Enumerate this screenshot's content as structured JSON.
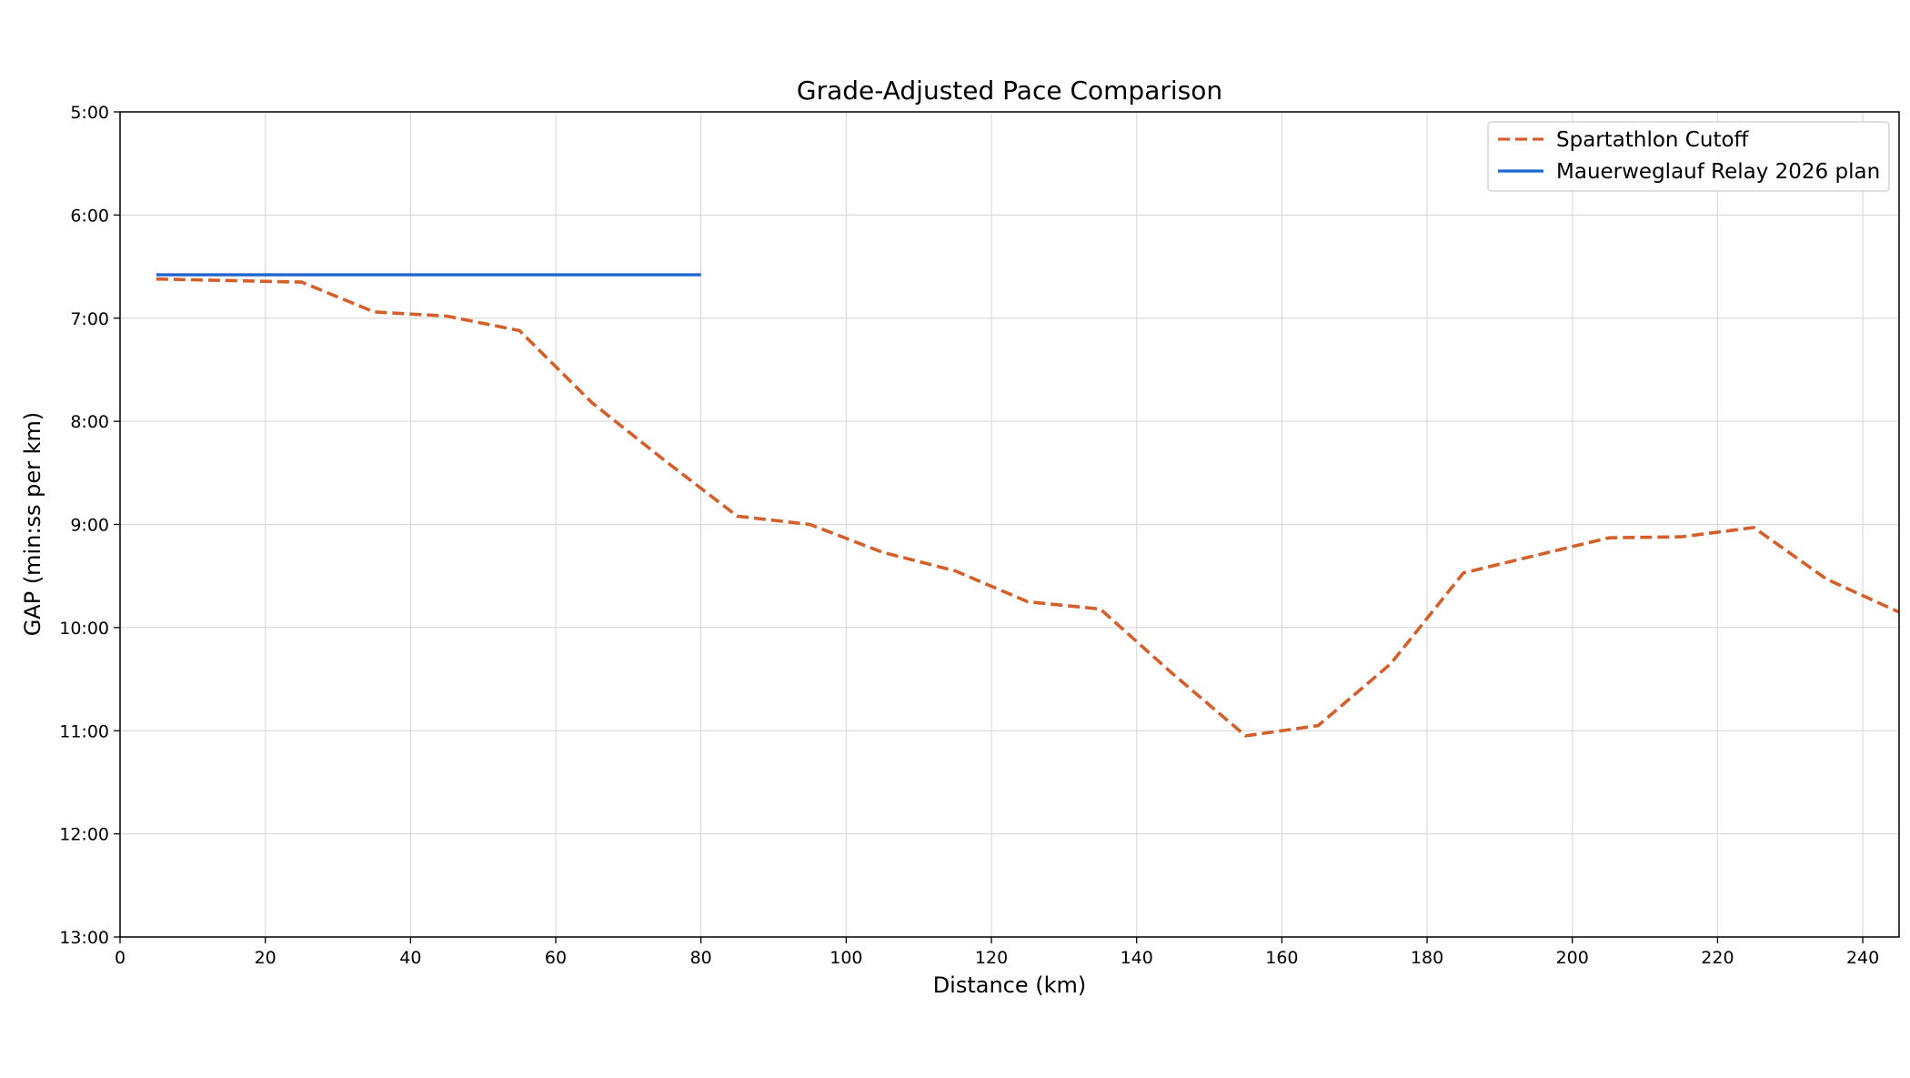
{
  "chart_data": {
    "type": "line",
    "title": "Grade-Adjusted Pace Comparison",
    "xlabel": "Distance (km)",
    "ylabel": "GAP (min:ss per km)",
    "xlim": [
      0,
      245
    ],
    "ylim_minutes": [
      5,
      13
    ],
    "y_inverted": true,
    "x_ticks": [
      "0",
      "20",
      "40",
      "60",
      "80",
      "100",
      "120",
      "140",
      "160",
      "180",
      "200",
      "220",
      "240"
    ],
    "y_ticks": [
      "5:00",
      "6:00",
      "7:00",
      "8:00",
      "9:00",
      "10:00",
      "11:00",
      "12:00",
      "13:00"
    ],
    "grid": true,
    "legend_position": "top-right",
    "series": [
      {
        "name": "Spartathlon Cutoff",
        "style": "dashed",
        "color": "#d45f2a",
        "x": [
          5,
          25,
          35,
          45,
          55,
          65,
          75,
          85,
          95,
          105,
          115,
          125,
          135,
          145,
          155,
          165,
          175,
          185,
          195,
          205,
          215,
          225,
          235,
          245
        ],
        "y_minutes": [
          6.62,
          6.65,
          6.94,
          6.98,
          7.12,
          7.82,
          8.38,
          8.92,
          9.0,
          9.27,
          9.45,
          9.75,
          9.82,
          10.45,
          11.05,
          10.95,
          10.35,
          9.47,
          9.3,
          9.13,
          9.12,
          9.03,
          9.53,
          9.85
        ]
      },
      {
        "name": "Mauerweglauf Relay 2026 plan",
        "style": "solid",
        "color": "#1f66d0",
        "x": [
          5,
          80
        ],
        "y_minutes": [
          6.58,
          6.58
        ]
      }
    ]
  }
}
